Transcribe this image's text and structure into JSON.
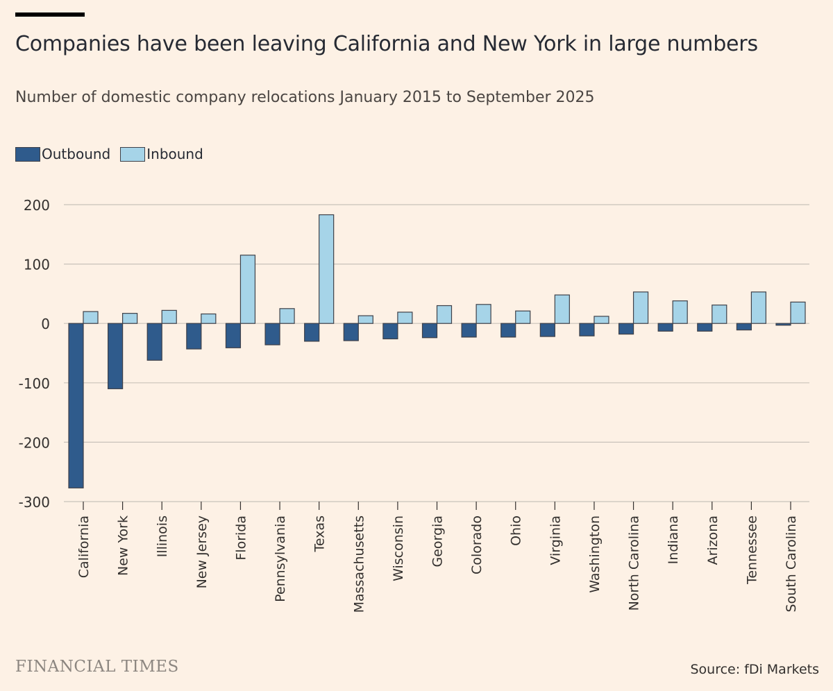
{
  "header": {
    "title": "Companies have been leaving California and New York in large numbers",
    "subtitle": "Number of domestic company relocations January 2015 to September 2025"
  },
  "colors": {
    "outbound": "#2F5B8C",
    "inbound": "#A6D4E8",
    "bar_border": "#3E4048",
    "gridline": "#C9C2BA",
    "axis_text": "#33302E",
    "background": "#FDF1E5"
  },
  "chart_data": {
    "type": "bar",
    "title": "Companies have been leaving California and New York in large numbers",
    "subtitle": "Number of domestic company relocations January 2015 to September 2025",
    "xlabel": "",
    "ylabel": "",
    "ylim": [
      -300,
      200
    ],
    "yticks": [
      200,
      100,
      0,
      -100,
      -200,
      -300
    ],
    "ytick_labels": [
      "200",
      "100",
      "0",
      "-100",
      "-200",
      "-300"
    ],
    "grid": true,
    "legend_position": "top-left",
    "categories": [
      "California",
      "New York",
      "Illinois",
      "New Jersey",
      "Florida",
      "Pennsylvania",
      "Texas",
      "Massachusetts",
      "Wisconsin",
      "Georgia",
      "Colorado",
      "Ohio",
      "Virginia",
      "Washington",
      "North Carolina",
      "Indiana",
      "Arizona",
      "Tennessee",
      "South Carolina"
    ],
    "series": [
      {
        "name": "Outbound",
        "color": "#2F5B8C",
        "values": [
          -277,
          -110,
          -62,
          -43,
          -41,
          -36,
          -30,
          -29,
          -26,
          -24,
          -23,
          -23,
          -22,
          -21,
          -18,
          -13,
          -13,
          -11,
          -3
        ]
      },
      {
        "name": "Inbound",
        "color": "#A6D4E8",
        "values": [
          20,
          17,
          22,
          16,
          115,
          25,
          183,
          13,
          19,
          30,
          32,
          21,
          48,
          12,
          53,
          38,
          31,
          53,
          36
        ]
      }
    ]
  },
  "footer": {
    "brand": "FINANCIAL TIMES",
    "source_label": "Source:",
    "source_value": "fDi Markets"
  }
}
